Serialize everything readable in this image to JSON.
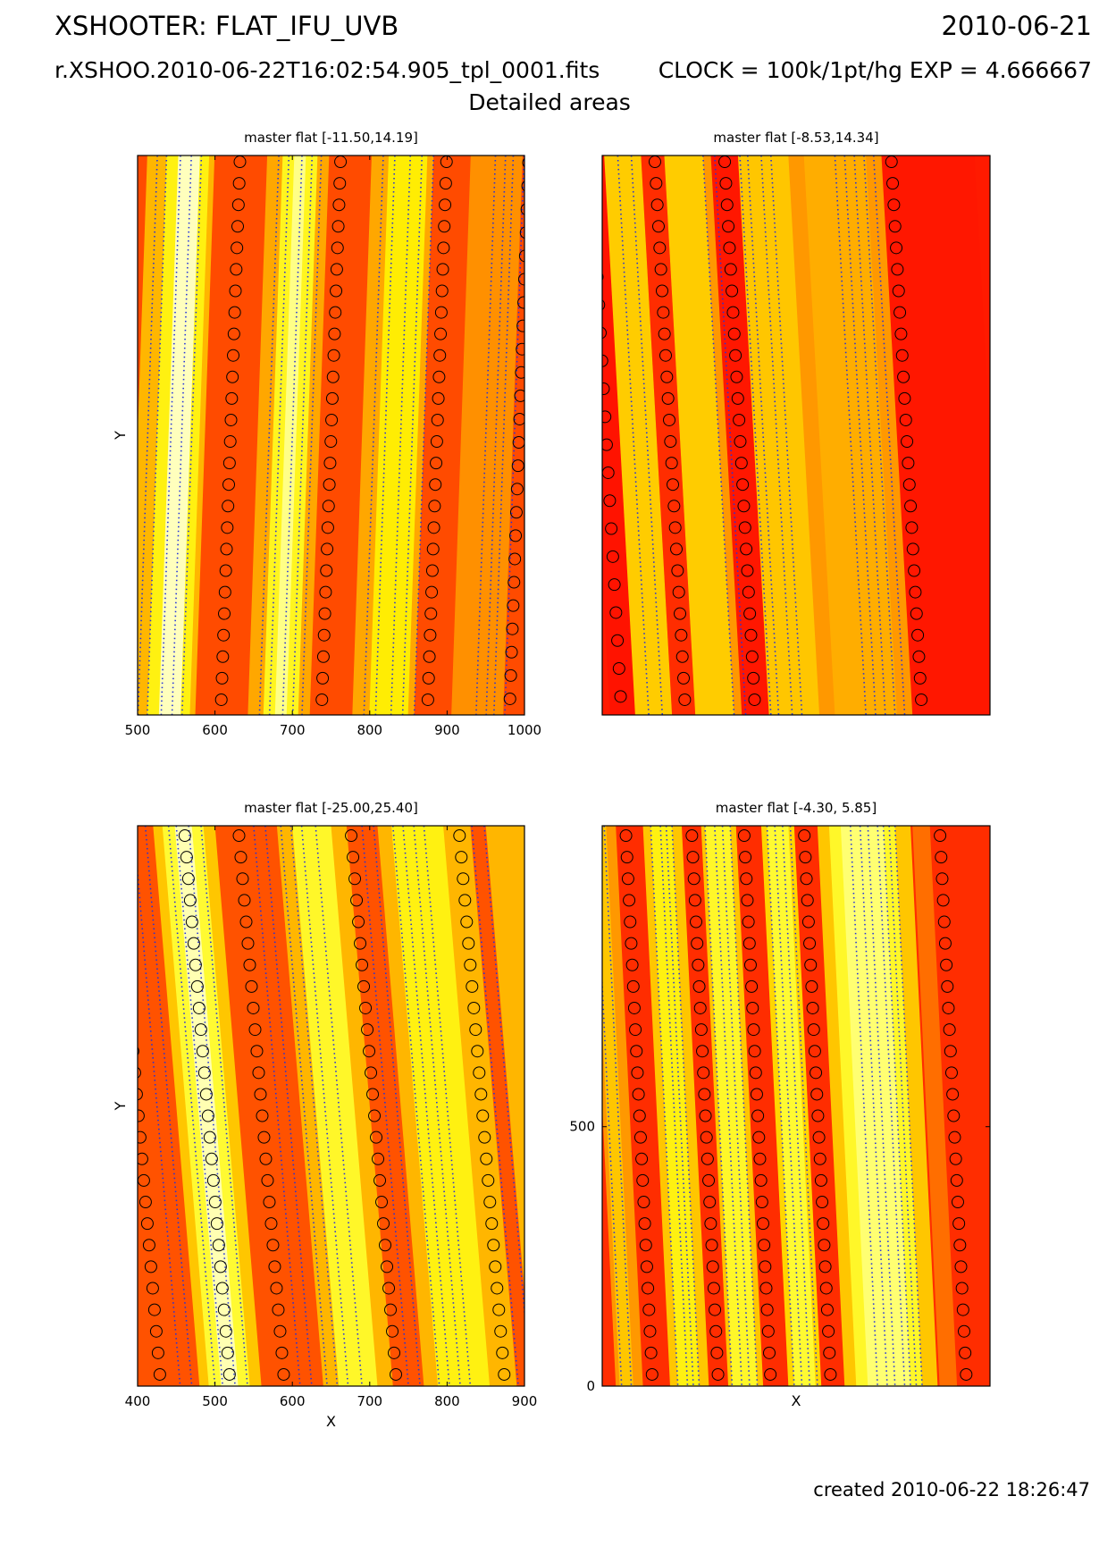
{
  "header": {
    "title_left": "XSHOOTER: FLAT_IFU_UVB",
    "title_right": "2010-06-21",
    "file_name": "r.XSHOO.2010-06-22T16:02:54.905_tpl_0001.fits",
    "clock_exp": "CLOCK = 100k/1pt/hg EXP = 4.666667",
    "subtitle": "Detailed areas"
  },
  "footer": {
    "created": "created 2010-06-22 18:26:47"
  },
  "colors": {
    "colormap": [
      "#ff0000",
      "#ff3600",
      "#ff6a00",
      "#ff9200",
      "#ffbc00",
      "#ffec00",
      "#ffff44",
      "#ffffdd"
    ],
    "trace_line": "#2233dd",
    "marker": "#000000"
  },
  "chart_data": [
    {
      "type": "heatmap",
      "title": "master flat [-11.50,14.19]",
      "xlabel": "",
      "ylabel": "Y",
      "xlim": [
        500,
        1000
      ],
      "xticks": [
        "500",
        "600",
        "700",
        "800",
        "900",
        "1000"
      ],
      "yticks": [],
      "value_range": [
        -11.5,
        14.19
      ],
      "slant": -0.05,
      "background_level": 0.2,
      "trace_dots_x": [
        513,
        525,
        543,
        557,
        570,
        670,
        683,
        700,
        713,
        725,
        805,
        820,
        840,
        855,
        870,
        950,
        963,
        973,
        987
      ],
      "marker_columns": [
        {
          "x": 620,
          "rows": 26
        },
        {
          "x": 750,
          "rows": 26
        },
        {
          "x": 887,
          "rows": 26
        },
        {
          "x": 993,
          "rows": 24
        }
      ],
      "bands": [
        {
          "x0": 500,
          "x1": 587,
          "level": 0.55
        },
        {
          "x0": 525,
          "x1": 580,
          "level": 0.75
        },
        {
          "x0": 540,
          "x1": 568,
          "level": 0.97
        },
        {
          "x0": 655,
          "x1": 735,
          "level": 0.5
        },
        {
          "x0": 675,
          "x1": 720,
          "level": 0.78
        },
        {
          "x0": 690,
          "x1": 705,
          "level": 0.92
        },
        {
          "x0": 790,
          "x1": 870,
          "level": 0.5
        },
        {
          "x0": 812,
          "x1": 862,
          "level": 0.72
        },
        {
          "x0": 918,
          "x1": 985,
          "level": 0.42
        }
      ]
    },
    {
      "type": "heatmap",
      "title": "master flat [-8.53,14.34]",
      "xlabel": "",
      "ylabel": "",
      "xlim": [
        0,
        1000
      ],
      "xticks": [],
      "yticks": [],
      "value_range": [
        -8.53,
        14.34
      ],
      "slant": 0.08,
      "background_level": 0.07,
      "trace_dots_x": [
        80,
        115,
        300,
        330,
        395,
        415,
        450,
        475,
        640,
        665,
        690,
        715,
        740
      ],
      "marker_columns": [
        {
          "x": 10,
          "rows": 20
        },
        {
          "x": 175,
          "rows": 26
        },
        {
          "x": 355,
          "rows": 26
        },
        {
          "x": 785,
          "rows": 26
        }
      ],
      "bands": [
        {
          "x0": 0,
          "x1": 780,
          "level": 0.45
        },
        {
          "x0": 40,
          "x1": 140,
          "level": 0.62
        },
        {
          "x0": 200,
          "x1": 300,
          "level": 0.62
        },
        {
          "x0": 385,
          "x1": 520,
          "level": 0.6
        },
        {
          "x0": 560,
          "x1": 720,
          "level": 0.52
        },
        {
          "x0": -20,
          "x1": 45,
          "level": 0.05
        },
        {
          "x0": 140,
          "x1": 200,
          "level": 0.12
        },
        {
          "x0": 320,
          "x1": 390,
          "level": 0.06
        },
        {
          "x0": 760,
          "x1": 1000,
          "level": 0.06
        }
      ]
    },
    {
      "type": "heatmap",
      "title": "master flat [-25.00,25.40]",
      "xlabel": "X",
      "ylabel": "Y",
      "xlim": [
        400,
        900
      ],
      "xticks": [
        "400",
        "500",
        "600",
        "700",
        "800",
        "900"
      ],
      "yticks": [],
      "value_range": [
        -25.0,
        25.4
      ],
      "slant": 0.12,
      "background_level": 0.22,
      "trace_dots_x": [
        425,
        440,
        470,
        480,
        496,
        512,
        580,
        595,
        615,
        628,
        642,
        660,
        720,
        735,
        760,
        773,
        787,
        800,
        862,
        878
      ],
      "marker_columns": [
        {
          "x": 400,
          "rows": 26
        },
        {
          "x": 490,
          "rows": 26
        },
        {
          "x": 560,
          "rows": 26
        },
        {
          "x": 705,
          "rows": 26
        },
        {
          "x": 845,
          "rows": 26
        }
      ],
      "bands": [
        {
          "x0": 450,
          "x1": 530,
          "level": 0.6
        },
        {
          "x0": 462,
          "x1": 515,
          "level": 0.82
        },
        {
          "x0": 478,
          "x1": 500,
          "level": 0.96
        },
        {
          "x0": 610,
          "x1": 700,
          "level": 0.55
        },
        {
          "x0": 630,
          "x1": 680,
          "level": 0.8
        },
        {
          "x0": 740,
          "x1": 860,
          "level": 0.55
        },
        {
          "x0": 758,
          "x1": 825,
          "level": 0.75
        },
        {
          "x0": 880,
          "x1": 930,
          "level": 0.55
        }
      ]
    },
    {
      "type": "heatmap",
      "title": "master flat [-4.30, 5.85]",
      "xlabel": "X",
      "ylabel": "",
      "xlim": [
        0,
        1000
      ],
      "xticks": [],
      "ylim": [
        0,
        1080
      ],
      "yticks": [
        "0",
        "500"
      ],
      "value_range": [
        -4.3,
        5.85
      ],
      "slant": 0.07,
      "background_level": 0.12,
      "trace_dots_x": [
        15,
        40,
        160,
        185,
        200,
        215,
        300,
        325,
        345,
        365,
        460,
        480,
        500,
        520,
        675,
        700,
        720,
        745,
        760,
        775,
        790
      ],
      "marker_columns": [
        {
          "x": 95,
          "rows": 26
        },
        {
          "x": 265,
          "rows": 26
        },
        {
          "x": 400,
          "rows": 26
        },
        {
          "x": 555,
          "rows": 26
        },
        {
          "x": 905,
          "rows": 26
        }
      ],
      "bands": [
        {
          "x0": 0,
          "x1": 70,
          "level": 0.45
        },
        {
          "x0": 10,
          "x1": 45,
          "level": 0.6
        },
        {
          "x0": 140,
          "x1": 240,
          "level": 0.6
        },
        {
          "x0": 160,
          "x1": 215,
          "level": 0.75
        },
        {
          "x0": 290,
          "x1": 380,
          "level": 0.6
        },
        {
          "x0": 300,
          "x1": 365,
          "level": 0.8
        },
        {
          "x0": 445,
          "x1": 530,
          "level": 0.65
        },
        {
          "x0": 460,
          "x1": 515,
          "level": 0.82
        },
        {
          "x0": 590,
          "x1": 830,
          "level": 0.6
        },
        {
          "x0": 620,
          "x1": 790,
          "level": 0.8
        },
        {
          "x0": 650,
          "x1": 760,
          "level": 0.9
        },
        {
          "x0": 835,
          "x1": 880,
          "level": 0.3
        }
      ]
    }
  ]
}
